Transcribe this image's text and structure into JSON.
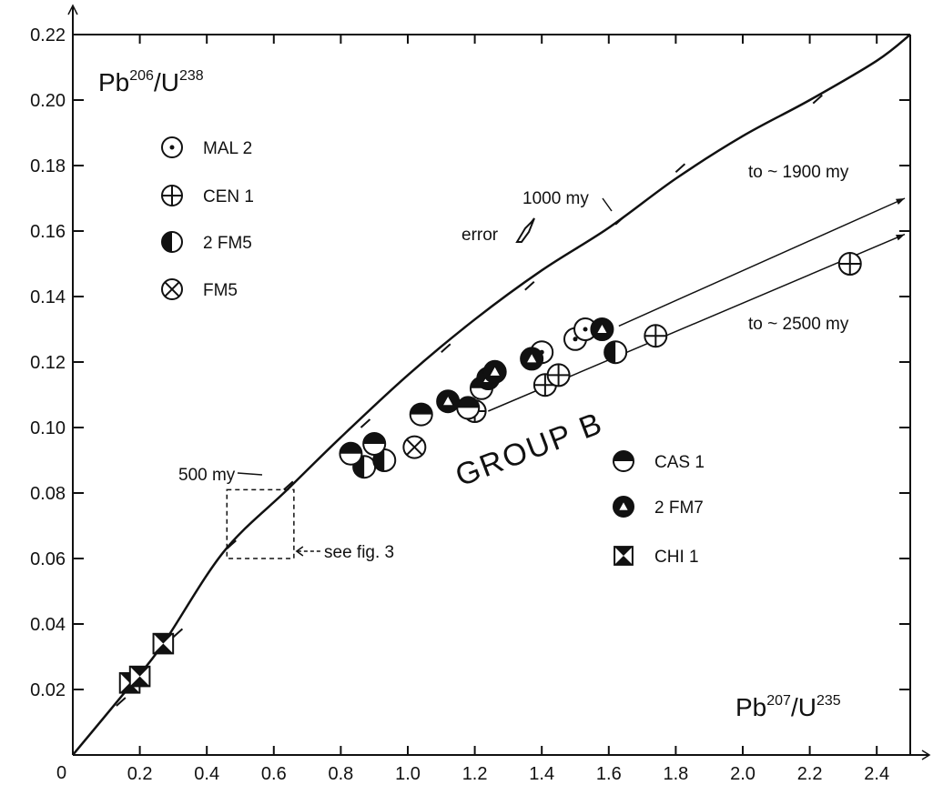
{
  "chart_data": {
    "type": "scatter",
    "title": "",
    "xlabel": {
      "base": "Pb",
      "sup1": "207",
      "mid": "/U",
      "sup2": "235"
    },
    "ylabel": {
      "base": "Pb",
      "sup1": "206",
      "mid": "/U",
      "sup2": "238"
    },
    "xlim": [
      0,
      2.5
    ],
    "ylim": [
      0,
      0.22
    ],
    "origin_label": "0",
    "x_ticks": [
      "0.2",
      "0.4",
      "0.6",
      "0.8",
      "1.0",
      "1.2",
      "1.4",
      "1.6",
      "1.8",
      "2.0",
      "2.2",
      "2.4"
    ],
    "y_ticks": [
      "0.02",
      "0.04",
      "0.06",
      "0.08",
      "0.10",
      "0.12",
      "0.14",
      "0.16",
      "0.18",
      "0.20",
      "0.22"
    ],
    "concordia": [
      [
        0,
        0
      ],
      [
        0.17,
        0.021
      ],
      [
        0.27,
        0.034
      ],
      [
        0.45,
        0.062
      ],
      [
        0.64,
        0.081
      ],
      [
        0.8,
        0.097
      ],
      [
        1.0,
        0.116
      ],
      [
        1.2,
        0.133
      ],
      [
        1.4,
        0.148
      ],
      [
        1.6,
        0.161
      ],
      [
        1.8,
        0.176
      ],
      [
        2.0,
        0.189
      ],
      [
        2.2,
        0.2
      ],
      [
        2.4,
        0.212
      ],
      [
        2.5,
        0.22
      ]
    ],
    "age_ticks_on_curve": [
      [
        0.13,
        0.015
      ],
      [
        0.3,
        0.036
      ],
      [
        0.46,
        0.063
      ],
      [
        0.63,
        0.081
      ],
      [
        0.86,
        0.1
      ],
      [
        1.1,
        0.123
      ],
      [
        1.35,
        0.142
      ],
      [
        1.62,
        0.162
      ],
      [
        1.8,
        0.178
      ],
      [
        2.21,
        0.199
      ]
    ],
    "series": [
      {
        "name": "MAL 2",
        "symbol": "dot-circle",
        "points": [
          [
            1.4,
            0.123
          ],
          [
            1.5,
            0.127
          ],
          [
            1.53,
            0.13
          ]
        ]
      },
      {
        "name": "CEN 1",
        "symbol": "plus-circle",
        "points": [
          [
            1.2,
            0.105
          ],
          [
            1.41,
            0.113
          ],
          [
            1.45,
            0.116
          ],
          [
            1.74,
            0.128
          ],
          [
            2.32,
            0.15
          ]
        ]
      },
      {
        "name": "2 FM5",
        "symbol": "left-half-black",
        "points": [
          [
            0.87,
            0.088
          ],
          [
            0.93,
            0.09
          ],
          [
            1.62,
            0.123
          ]
        ]
      },
      {
        "name": "FM5",
        "symbol": "x-circle",
        "points": [
          [
            1.02,
            0.094
          ]
        ]
      },
      {
        "name": "CAS 1",
        "symbol": "top-half-black",
        "points": [
          [
            0.83,
            0.092
          ],
          [
            0.9,
            0.095
          ],
          [
            1.04,
            0.104
          ],
          [
            1.22,
            0.112
          ],
          [
            1.18,
            0.106
          ]
        ]
      },
      {
        "name": "2 FM7",
        "symbol": "black-triangle",
        "points": [
          [
            1.12,
            0.108
          ],
          [
            1.24,
            0.115
          ],
          [
            1.26,
            0.117
          ],
          [
            1.37,
            0.121
          ],
          [
            1.58,
            0.13
          ]
        ]
      },
      {
        "name": "CHI 1",
        "symbol": "bowtie-square",
        "points": [
          [
            0.17,
            0.022
          ],
          [
            0.2,
            0.024
          ],
          [
            0.27,
            0.034
          ]
        ]
      }
    ],
    "annotations": {
      "age_1000": "1000 my",
      "age_500": "500 my",
      "error": "error",
      "see_fig": "see fig. 3",
      "to_1900": "to ~ 1900 my",
      "to_2500": "to ~ 2500 my",
      "group": "GROUP B"
    },
    "trend_lines": [
      {
        "from": [
          1.63,
          0.131
        ],
        "to": [
          2.5,
          0.17
        ]
      },
      {
        "from": [
          1.24,
          0.105
        ],
        "to": [
          2.5,
          0.159
        ]
      }
    ],
    "box_see_fig3": [
      [
        0.46,
        0.06
      ],
      [
        0.66,
        0.081
      ]
    ]
  }
}
